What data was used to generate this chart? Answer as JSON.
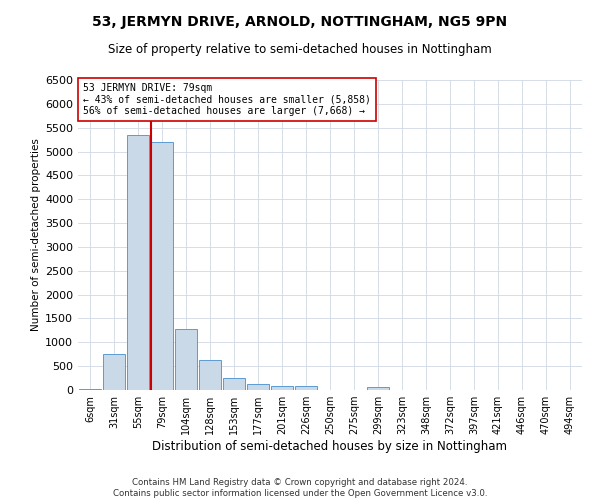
{
  "title": "53, JERMYN DRIVE, ARNOLD, NOTTINGHAM, NG5 9PN",
  "subtitle": "Size of property relative to semi-detached houses in Nottingham",
  "xlabel": "Distribution of semi-detached houses by size in Nottingham",
  "ylabel": "Number of semi-detached properties",
  "footer_line1": "Contains HM Land Registry data © Crown copyright and database right 2024.",
  "footer_line2": "Contains public sector information licensed under the Open Government Licence v3.0.",
  "annotation_line1": "53 JERMYN DRIVE: 79sqm",
  "annotation_line2": "← 43% of semi-detached houses are smaller (5,858)",
  "annotation_line3": "56% of semi-detached houses are larger (7,668) →",
  "bar_color": "#c9d9e8",
  "bar_edge_color": "#5b9bd5",
  "highlight_color": "#cc0000",
  "background_color": "#ffffff",
  "grid_color": "#d0d8e4",
  "categories": [
    "6sqm",
    "31sqm",
    "55sqm",
    "79sqm",
    "104sqm",
    "128sqm",
    "153sqm",
    "177sqm",
    "201sqm",
    "226sqm",
    "250sqm",
    "275sqm",
    "299sqm",
    "323sqm",
    "348sqm",
    "372sqm",
    "397sqm",
    "421sqm",
    "446sqm",
    "470sqm",
    "494sqm"
  ],
  "values": [
    30,
    750,
    5350,
    5200,
    1280,
    620,
    260,
    120,
    85,
    75,
    10,
    10,
    55,
    10,
    10,
    10,
    10,
    10,
    10,
    10,
    10
  ],
  "highlight_bar_idx": 3,
  "ylim": [
    0,
    6500
  ],
  "yticks": [
    0,
    500,
    1000,
    1500,
    2000,
    2500,
    3000,
    3500,
    4000,
    4500,
    5000,
    5500,
    6000,
    6500
  ]
}
